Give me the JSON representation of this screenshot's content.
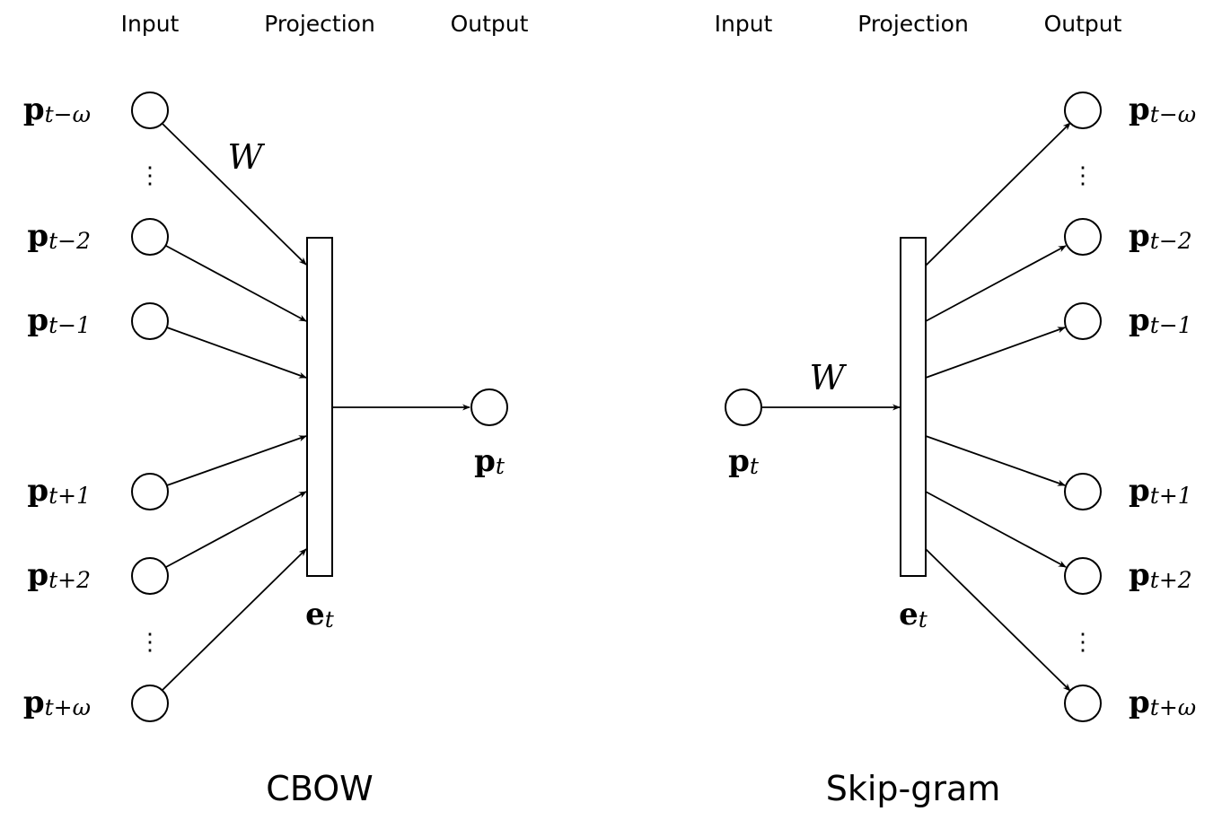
{
  "cbow": {
    "title": "CBOW",
    "headers": {
      "input": "Input",
      "projection": "Projection",
      "output": "Output"
    },
    "weight_label": "W",
    "inputs": [
      {
        "main": "p",
        "sub": "t−ω"
      },
      {
        "main": "p",
        "sub": "t−2"
      },
      {
        "main": "p",
        "sub": "t−1"
      },
      {
        "main": "p",
        "sub": "t+1"
      },
      {
        "main": "p",
        "sub": "t+2"
      },
      {
        "main": "p",
        "sub": "t+ω"
      }
    ],
    "projection": {
      "main": "e",
      "sub": "t"
    },
    "output": {
      "main": "p",
      "sub": "t"
    },
    "dots": "⋮"
  },
  "skipgram": {
    "title": "Skip-gram",
    "headers": {
      "input": "Input",
      "projection": "Projection",
      "output": "Output"
    },
    "weight_label": "W",
    "input": {
      "main": "p",
      "sub": "t"
    },
    "projection": {
      "main": "e",
      "sub": "t"
    },
    "outputs": [
      {
        "main": "p",
        "sub": "t−ω"
      },
      {
        "main": "p",
        "sub": "t−2"
      },
      {
        "main": "p",
        "sub": "t−1"
      },
      {
        "main": "p",
        "sub": "t+1"
      },
      {
        "main": "p",
        "sub": "t+2"
      },
      {
        "main": "p",
        "sub": "t+ω"
      }
    ],
    "dots": "⋮"
  }
}
